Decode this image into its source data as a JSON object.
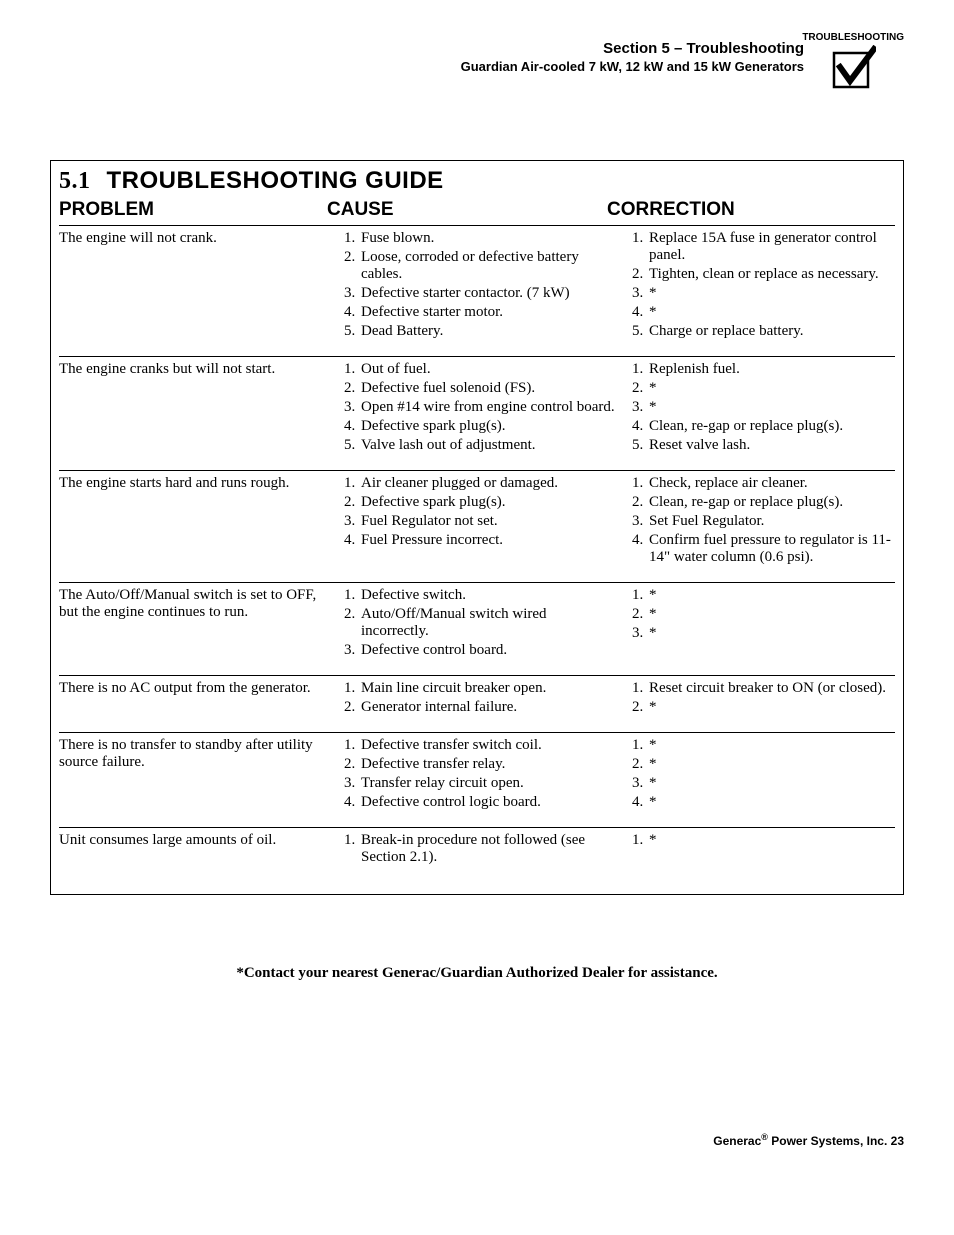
{
  "header": {
    "section_title": "Section 5 – Troubleshooting",
    "sub_title": "Guardian Air-cooled 7 kW, 12 kW and 15 kW Generators",
    "icon_label": "TROUBLESHOOTING"
  },
  "guide": {
    "title_num": "5.1",
    "title_text": "TROUBLESHOOTING GUIDE",
    "col1": "PROBLEM",
    "col2": "CAUSE",
    "col3": "CORRECTION"
  },
  "rows": [
    {
      "problem": "The engine will not crank.",
      "causes": [
        "Fuse blown.",
        "Loose, corroded or defective battery cables.",
        "Defective starter contactor. (7 kW)",
        "Defective starter motor.",
        "Dead Battery."
      ],
      "corrections": [
        "Replace 15A fuse in generator control panel.",
        "Tighten, clean or replace as necessary.",
        "*",
        "*",
        "Charge or replace battery."
      ]
    },
    {
      "problem": "The engine cranks but will not start.",
      "causes": [
        "Out of fuel.",
        "Defective fuel solenoid (FS).",
        "Open #14 wire from engine control board.",
        "Defective spark plug(s).",
        "Valve lash out of adjustment."
      ],
      "corrections": [
        "Replenish fuel.",
        "*",
        "*",
        "Clean, re-gap or replace plug(s).",
        "Reset valve lash."
      ]
    },
    {
      "problem": "The engine starts hard and runs rough.",
      "causes": [
        "Air cleaner plugged or damaged.",
        "Defective spark plug(s).",
        "Fuel Regulator not set.",
        "Fuel Pressure incorrect."
      ],
      "corrections": [
        "Check, replace air cleaner.",
        "Clean, re-gap or replace plug(s).",
        "Set Fuel Regulator.",
        "Confirm fuel pressure to regulator is 11-14\" water column (0.6 psi)."
      ]
    },
    {
      "problem": "The Auto/Off/Manual switch is set to OFF, but the engine continues to run.",
      "causes": [
        "Defective switch.",
        "Auto/Off/Manual switch wired incorrectly.",
        "Defective control board."
      ],
      "corrections": [
        "*",
        "*",
        "*"
      ]
    },
    {
      "problem": "There is no AC output from the generator.",
      "causes": [
        "Main line circuit breaker open.",
        "Generator internal failure."
      ],
      "corrections": [
        "Reset circuit breaker to ON (or closed).",
        "*"
      ]
    },
    {
      "problem": "There is no transfer to standby after utility source failure.",
      "causes": [
        "Defective transfer switch coil.",
        "Defective transfer relay.",
        "Transfer relay circuit open.",
        "Defective control logic board."
      ],
      "corrections": [
        "*",
        "*",
        "*",
        "*"
      ]
    },
    {
      "problem": "Unit consumes large amounts of oil.",
      "causes": [
        "Break-in procedure not followed (see Section 2.1)."
      ],
      "corrections": [
        "*"
      ]
    }
  ],
  "footnote": "*Contact your nearest Generac/Guardian Authorized Dealer for assistance.",
  "footer": {
    "brand": "Generac",
    "company": " Power Systems, Inc.  ",
    "page": "23"
  }
}
